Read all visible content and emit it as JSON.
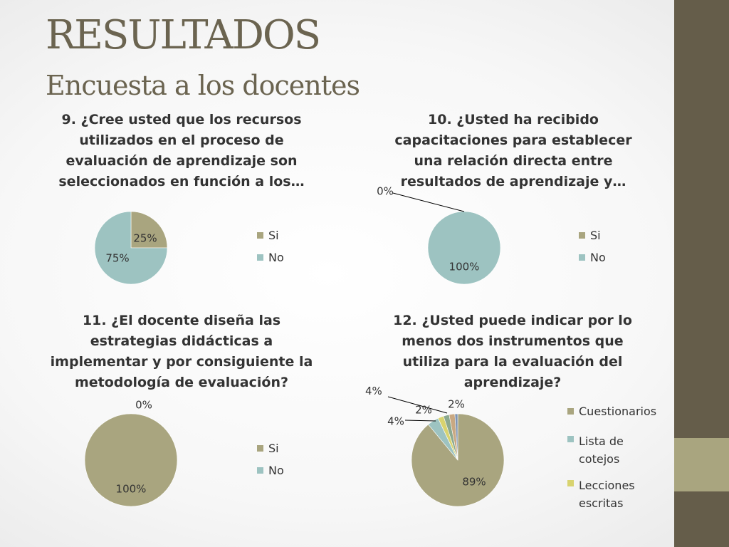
{
  "slide": {
    "title": "RESULTADOS",
    "subtitle": "Encuesta a los docentes"
  },
  "colors": {
    "sidebar": "#655d4a",
    "sidebar_band": "#a9a57f",
    "title": "#6b6450"
  },
  "chart_data": [
    {
      "type": "pie",
      "title": "9. ¿Cree usted que los recursos utilizados en el proceso de evaluación de aprendizaje son seleccionados en función a los…",
      "categories": [
        "Si",
        "No"
      ],
      "values": [
        25,
        75
      ],
      "labels": [
        "25%",
        "75%"
      ],
      "colors": [
        "#a9a57f",
        "#9dc3c1"
      ],
      "legend": [
        "Si",
        "No"
      ],
      "legend_position": "right"
    },
    {
      "type": "pie",
      "title": "10. ¿Usted ha recibido capacitaciones para establecer una relación directa entre resultados de aprendizaje y…",
      "categories": [
        "Si",
        "No"
      ],
      "values": [
        0,
        100
      ],
      "labels": [
        "0%",
        "100%"
      ],
      "colors": [
        "#a9a57f",
        "#9dc3c1"
      ],
      "legend": [
        "Si",
        "No"
      ],
      "legend_position": "right"
    },
    {
      "type": "pie",
      "title": "11. ¿El docente diseña las estrategias didácticas a implementar y por consiguiente la metodología de evaluación?",
      "categories": [
        "Si",
        "No"
      ],
      "values": [
        100,
        0
      ],
      "labels": [
        "100%",
        "0%"
      ],
      "colors": [
        "#a9a57f",
        "#9dc3c1"
      ],
      "legend": [
        "Si",
        "No"
      ],
      "legend_position": "right"
    },
    {
      "type": "pie",
      "title": "12. ¿Usted puede indicar por lo menos dos instrumentos que utiliza para la evaluación del aprendizaje?",
      "categories": [
        "Cuestionarios",
        "Lista de cotejos",
        "Lecciones escritas",
        "",
        "",
        ""
      ],
      "values": [
        89,
        4,
        2,
        2,
        2,
        1
      ],
      "labels": [
        "89%",
        "4%",
        "2%",
        "2%",
        "",
        ""
      ],
      "colors": [
        "#a9a57f",
        "#9dc3c1",
        "#d8d36f",
        "#8ca98f",
        "#c9a882",
        "#7d93b3"
      ],
      "legend": [
        "Cuestionarios",
        "Lista de cotejos",
        "Lecciones escritas"
      ],
      "extra_labels": [
        "4%"
      ],
      "legend_position": "right"
    }
  ]
}
